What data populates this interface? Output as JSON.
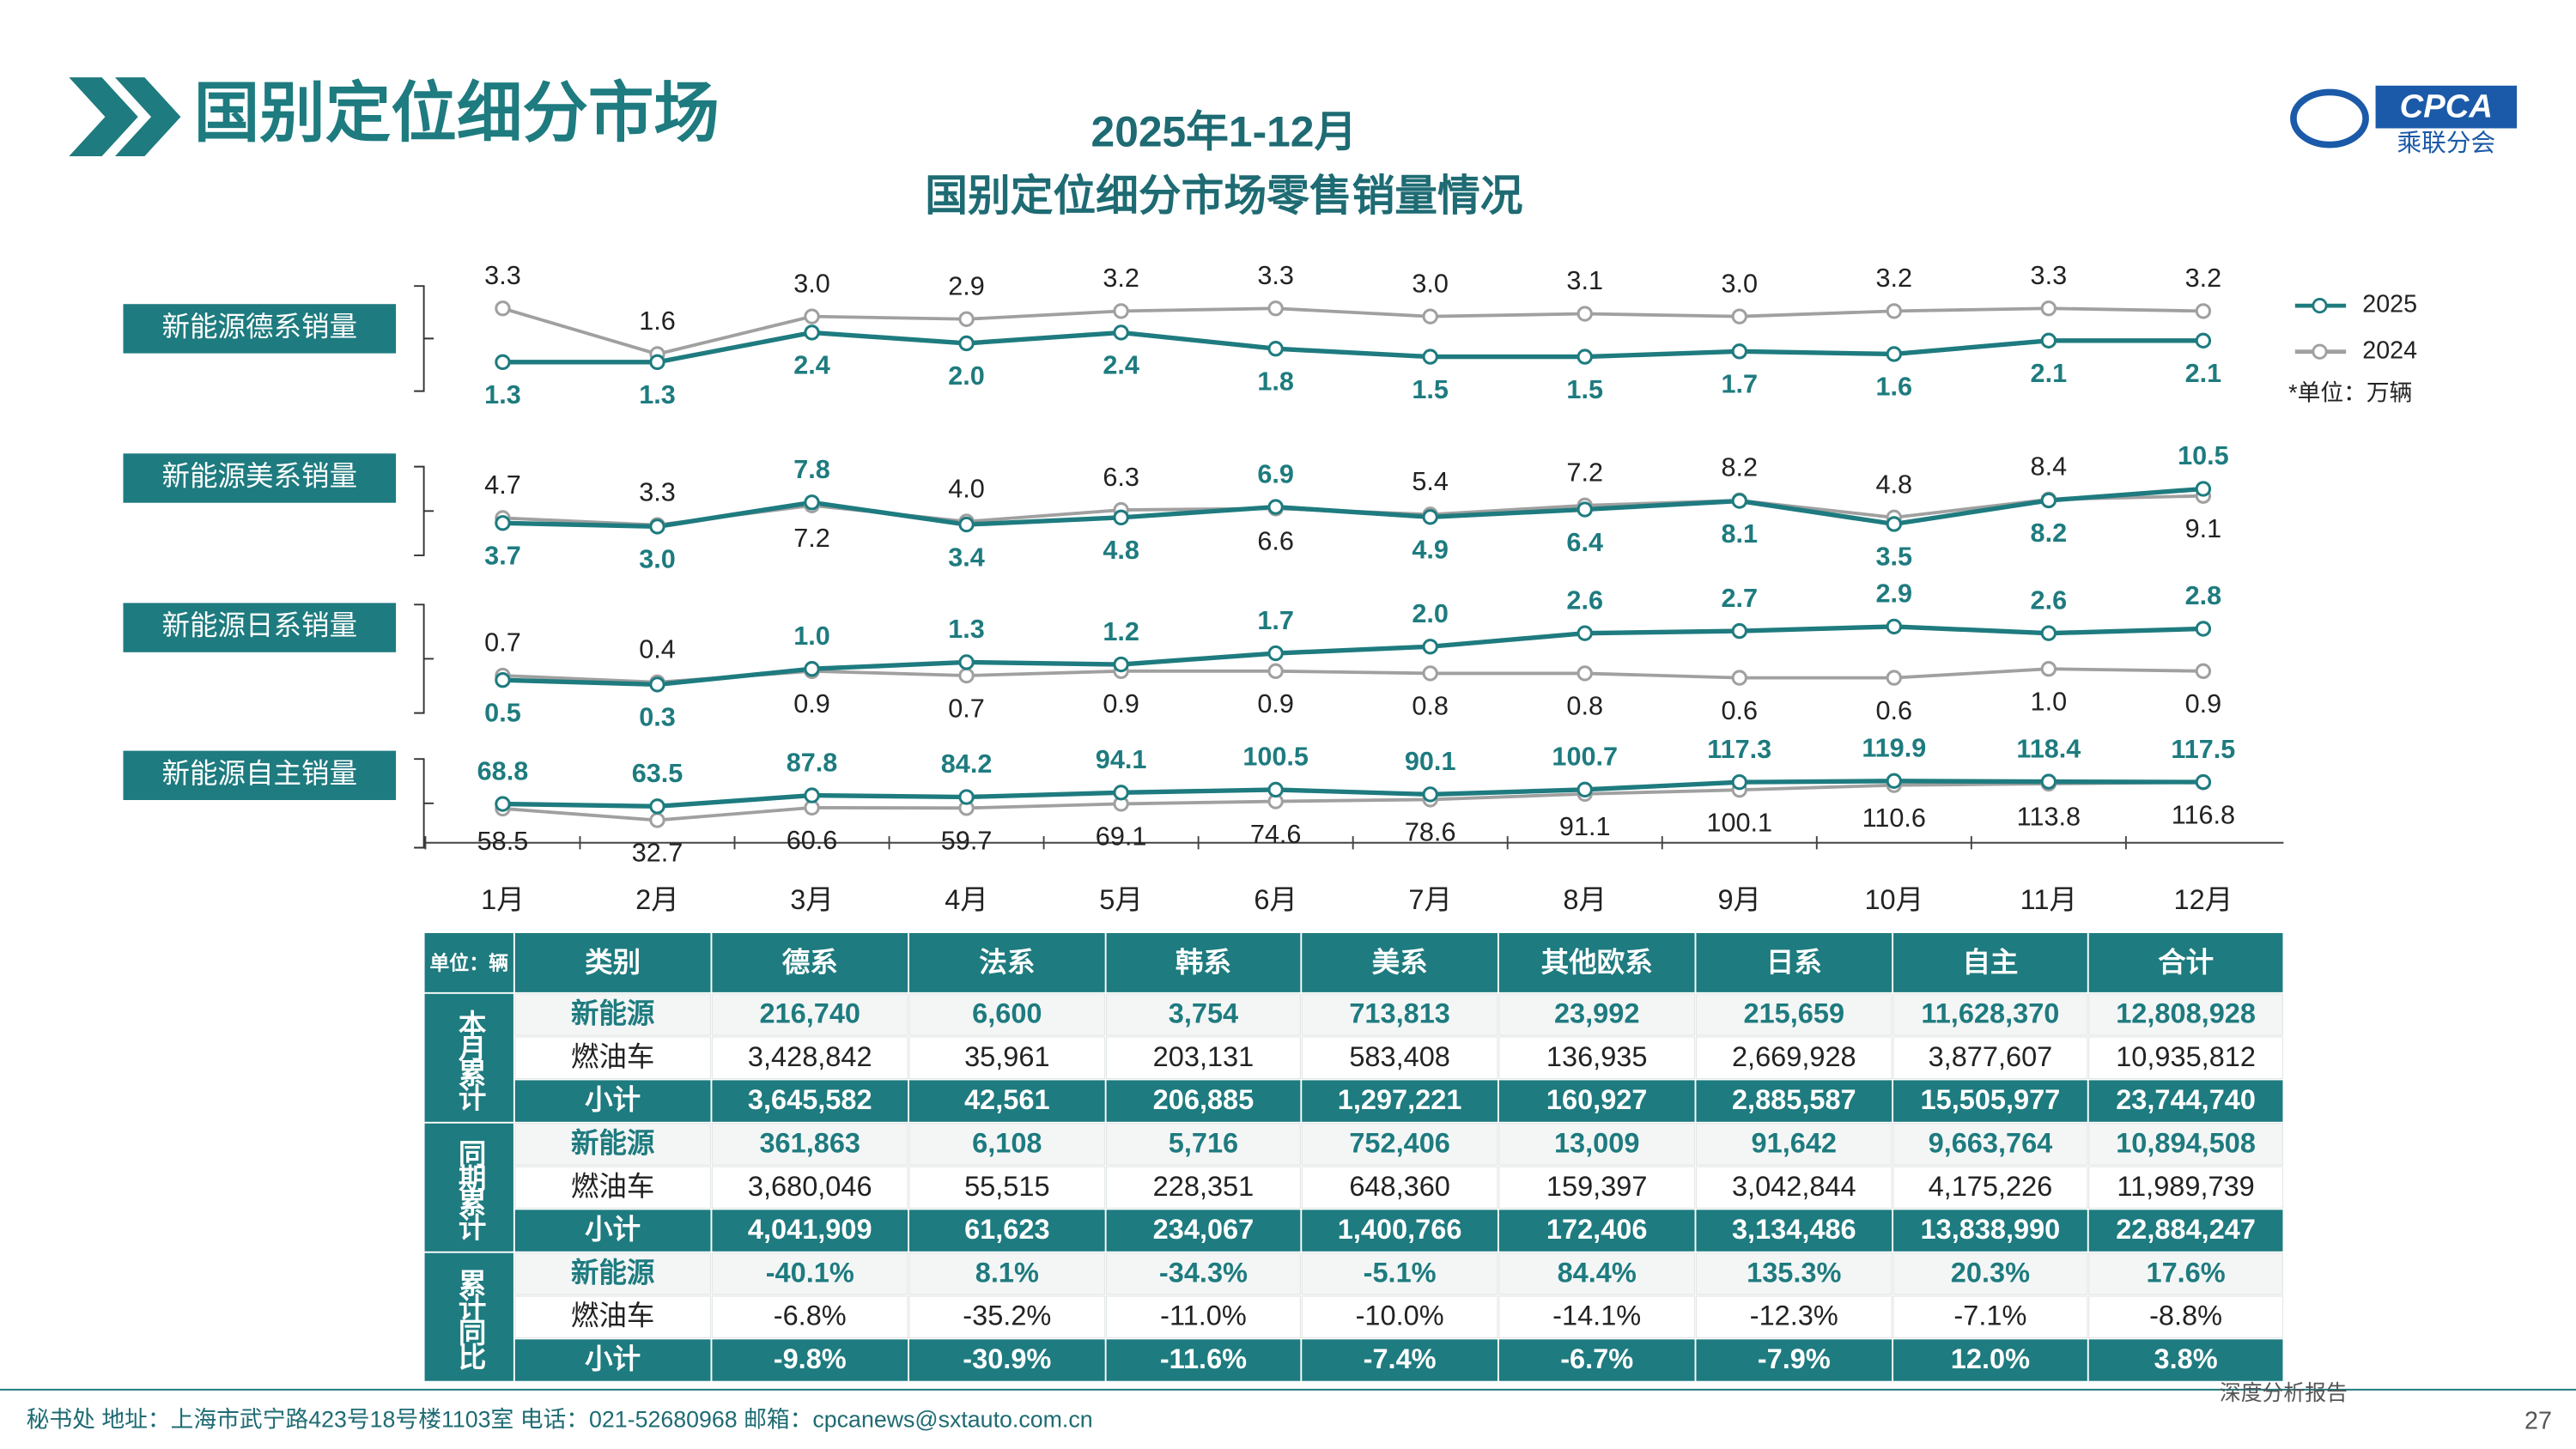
{
  "header": {
    "title": "国别定位细分市场",
    "logo_text": "CPCA",
    "logo_sub": "乘联分会"
  },
  "chart_heading": [
    "2025年1-12月",
    "国别定位细分市场零售销量情况"
  ],
  "unit_note": "*单位：万辆",
  "chart_data": {
    "type": "line",
    "legend_position": "top-right",
    "categories": [
      "1月",
      "2月",
      "3月",
      "4月",
      "5月",
      "6月",
      "7月",
      "8月",
      "9月",
      "10月",
      "11月",
      "12月"
    ],
    "series": [
      {
        "name": "2025",
        "color": "#1e7b7f"
      },
      {
        "name": "2024",
        "color": "#a0a0a0"
      }
    ],
    "panels": [
      {
        "title": "新能源德系销量",
        "ylim": [
          1.2,
          3.4
        ],
        "series": [
          {
            "values": [
              1.3,
              1.3,
              2.4,
              2.0,
              2.4,
              1.8,
              1.5,
              1.5,
              1.7,
              1.6,
              2.1,
              2.1
            ],
            "value_labels": [
              "1.3",
              "1.3",
              "2.4",
              "2.0",
              "2.4",
              "1.8",
              "1.5",
              "1.5",
              "1.7",
              "1.6",
              "2.1",
              "2.1"
            ]
          },
          {
            "values": [
              3.3,
              1.6,
              3.0,
              2.9,
              3.2,
              3.3,
              3.0,
              3.1,
              3.0,
              3.2,
              3.3,
              3.2
            ],
            "value_labels": [
              "3.3",
              "1.6",
              "3.0",
              "2.9",
              "3.2",
              "3.3",
              "3.0",
              "3.1",
              "3.0",
              "3.2",
              "3.3",
              "3.2"
            ]
          }
        ]
      },
      {
        "title": "新能源美系销量",
        "ylim": [
          2.5,
          11
        ],
        "series": [
          {
            "values": [
              3.7,
              3.0,
              7.8,
              3.4,
              4.8,
              6.9,
              4.9,
              6.4,
              8.1,
              3.5,
              8.2,
              10.5
            ],
            "value_labels": [
              "3.7",
              "3.0",
              "7.8",
              "3.4",
              "4.8",
              "6.9",
              "4.9",
              "6.4",
              "8.1",
              "3.5",
              "8.2",
              "10.5"
            ]
          },
          {
            "values": [
              4.7,
              3.3,
              7.2,
              4.0,
              6.3,
              6.6,
              5.4,
              7.2,
              8.2,
              4.8,
              8.4,
              9.1
            ],
            "value_labels": [
              "4.7",
              "3.3",
              "7.2",
              "4.0",
              "6.3",
              "6.6",
              "5.4",
              "7.2",
              "8.2",
              "4.8",
              "8.4",
              "9.1"
            ]
          }
        ]
      },
      {
        "title": "新能源日系销量",
        "ylim": [
          0.2,
          3
        ],
        "series": [
          {
            "values": [
              0.5,
              0.3,
              1.0,
              1.3,
              1.2,
              1.7,
              2.0,
              2.6,
              2.7,
              2.9,
              2.6,
              2.8
            ],
            "value_labels": [
              "0.5",
              "0.3",
              "1.0",
              "1.3",
              "1.2",
              "1.7",
              "2.0",
              "2.6",
              "2.7",
              "2.9",
              "2.6",
              "2.8"
            ]
          },
          {
            "values": [
              0.7,
              0.4,
              0.9,
              0.7,
              0.9,
              0.9,
              0.8,
              0.8,
              0.6,
              0.6,
              1.0,
              0.9
            ],
            "value_labels": [
              "0.7",
              "0.4",
              "0.9",
              "0.7",
              "0.9",
              "0.9",
              "0.8",
              "0.8",
              "0.6",
              "0.6",
              "1.0",
              "0.9"
            ]
          }
        ]
      },
      {
        "title": "新能源自主销量",
        "ylim": [
          30,
          125
        ],
        "series": [
          {
            "values": [
              68.8,
              63.5,
              87.8,
              84.2,
              94.1,
              100.5,
              90.1,
              100.7,
              117.3,
              119.9,
              118.4,
              117.5
            ],
            "value_labels": [
              "68.8",
              "63.5",
              "87.8",
              "84.2",
              "94.1",
              "100.5",
              "90.1",
              "100.7",
              "117.3",
              "119.9",
              "118.4",
              "117.5"
            ]
          },
          {
            "values": [
              58.5,
              32.7,
              60.6,
              59.7,
              69.1,
              74.6,
              78.6,
              91.1,
              100.1,
              110.6,
              113.8,
              116.8
            ],
            "value_labels": [
              "58.5",
              "32.7",
              "60.6",
              "59.7",
              "69.1",
              "74.6",
              "78.6",
              "91.1",
              "100.1",
              "110.6",
              "113.8",
              "116.8"
            ]
          }
        ]
      }
    ]
  },
  "table": {
    "header": [
      "单位：辆",
      "类别",
      "德系",
      "法系",
      "韩系",
      "美系",
      "其他欧系",
      "日系",
      "自主",
      "合计"
    ],
    "groups": [
      {
        "label": "本月累计",
        "rows": [
          [
            "新能源",
            "216,740",
            "6,600",
            "3,754",
            "713,813",
            "23,992",
            "215,659",
            "11,628,370",
            "12,808,928"
          ],
          [
            "燃油车",
            "3,428,842",
            "35,961",
            "203,131",
            "583,408",
            "136,935",
            "2,669,928",
            "3,877,607",
            "10,935,812"
          ],
          [
            "小计",
            "3,645,582",
            "42,561",
            "206,885",
            "1,297,221",
            "160,927",
            "2,885,587",
            "15,505,977",
            "23,744,740"
          ]
        ]
      },
      {
        "label": "同期累计",
        "rows": [
          [
            "新能源",
            "361,863",
            "6,108",
            "5,716",
            "752,406",
            "13,009",
            "91,642",
            "9,663,764",
            "10,894,508"
          ],
          [
            "燃油车",
            "3,680,046",
            "55,515",
            "228,351",
            "648,360",
            "159,397",
            "3,042,844",
            "4,175,226",
            "11,989,739"
          ],
          [
            "小计",
            "4,041,909",
            "61,623",
            "234,067",
            "1,400,766",
            "172,406",
            "3,134,486",
            "13,838,990",
            "22,884,247"
          ]
        ]
      },
      {
        "label": "累计同比",
        "rows": [
          [
            "新能源",
            "-40.1%",
            "8.1%",
            "-34.3%",
            "-5.1%",
            "84.4%",
            "135.3%",
            "20.3%",
            "17.6%"
          ],
          [
            "燃油车",
            "-6.8%",
            "-35.2%",
            "-11.0%",
            "-10.0%",
            "-14.1%",
            "-12.3%",
            "-7.1%",
            "-8.8%"
          ],
          [
            "小计",
            "-9.8%",
            "-30.9%",
            "-11.6%",
            "-7.4%",
            "-6.7%",
            "-7.9%",
            "12.0%",
            "3.8%"
          ]
        ]
      }
    ]
  },
  "footer": {
    "contact": "秘书处   地址：上海市武宁路423号18号楼1103室   电话：021-52680968   邮箱：cpcanews@sxtauto.com.cn",
    "report": "深度分析报告",
    "page": "27"
  }
}
